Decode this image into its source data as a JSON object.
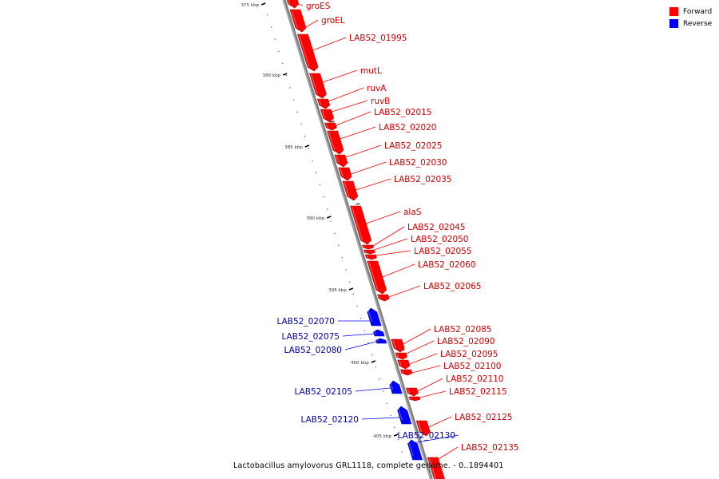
{
  "legend": {
    "forward_label": "Forward",
    "reverse_label": "Reverse",
    "forward_color": "#ff0000",
    "reverse_color": "#0000ff"
  },
  "caption": "Lactobacillus amylovorus GRL1118, complete genome. - 0..1894401",
  "colors": {
    "axis": "#808080",
    "forward_label": "#cc0000",
    "reverse_label": "#0000aa"
  },
  "ticks": [
    "375 kbp",
    "380 kbp",
    "385 kbp",
    "390 kbp",
    "395 kbp",
    "400 kbp",
    "405 kbp"
  ],
  "genes": [
    {
      "name": "groES",
      "strand": "forward"
    },
    {
      "name": "groEL",
      "strand": "forward"
    },
    {
      "name": "LAB52_01995",
      "strand": "forward"
    },
    {
      "name": "mutL",
      "strand": "forward"
    },
    {
      "name": "ruvA",
      "strand": "forward"
    },
    {
      "name": "ruvB",
      "strand": "forward"
    },
    {
      "name": "LAB52_02015",
      "strand": "forward"
    },
    {
      "name": "LAB52_02020",
      "strand": "forward"
    },
    {
      "name": "LAB52_02025",
      "strand": "forward"
    },
    {
      "name": "LAB52_02030",
      "strand": "forward"
    },
    {
      "name": "LAB52_02035",
      "strand": "forward"
    },
    {
      "name": "alaS",
      "strand": "forward"
    },
    {
      "name": "LAB52_02045",
      "strand": "forward"
    },
    {
      "name": "LAB52_02050",
      "strand": "forward"
    },
    {
      "name": "LAB52_02055",
      "strand": "forward"
    },
    {
      "name": "LAB52_02060",
      "strand": "forward"
    },
    {
      "name": "LAB52_02065",
      "strand": "forward"
    },
    {
      "name": "LAB52_02070",
      "strand": "reverse"
    },
    {
      "name": "LAB52_02075",
      "strand": "reverse"
    },
    {
      "name": "LAB52_02080",
      "strand": "reverse"
    },
    {
      "name": "LAB52_02085",
      "strand": "forward"
    },
    {
      "name": "LAB52_02090",
      "strand": "forward"
    },
    {
      "name": "LAB52_02095",
      "strand": "forward"
    },
    {
      "name": "LAB52_02100",
      "strand": "forward"
    },
    {
      "name": "LAB52_02105",
      "strand": "reverse"
    },
    {
      "name": "LAB52_02110",
      "strand": "forward"
    },
    {
      "name": "LAB52_02115",
      "strand": "forward"
    },
    {
      "name": "LAB52_02120",
      "strand": "reverse"
    },
    {
      "name": "LAB52_02125",
      "strand": "forward"
    },
    {
      "name": "LAB52_02130",
      "strand": "reverse"
    },
    {
      "name": "LAB52_02135",
      "strand": "forward"
    }
  ]
}
